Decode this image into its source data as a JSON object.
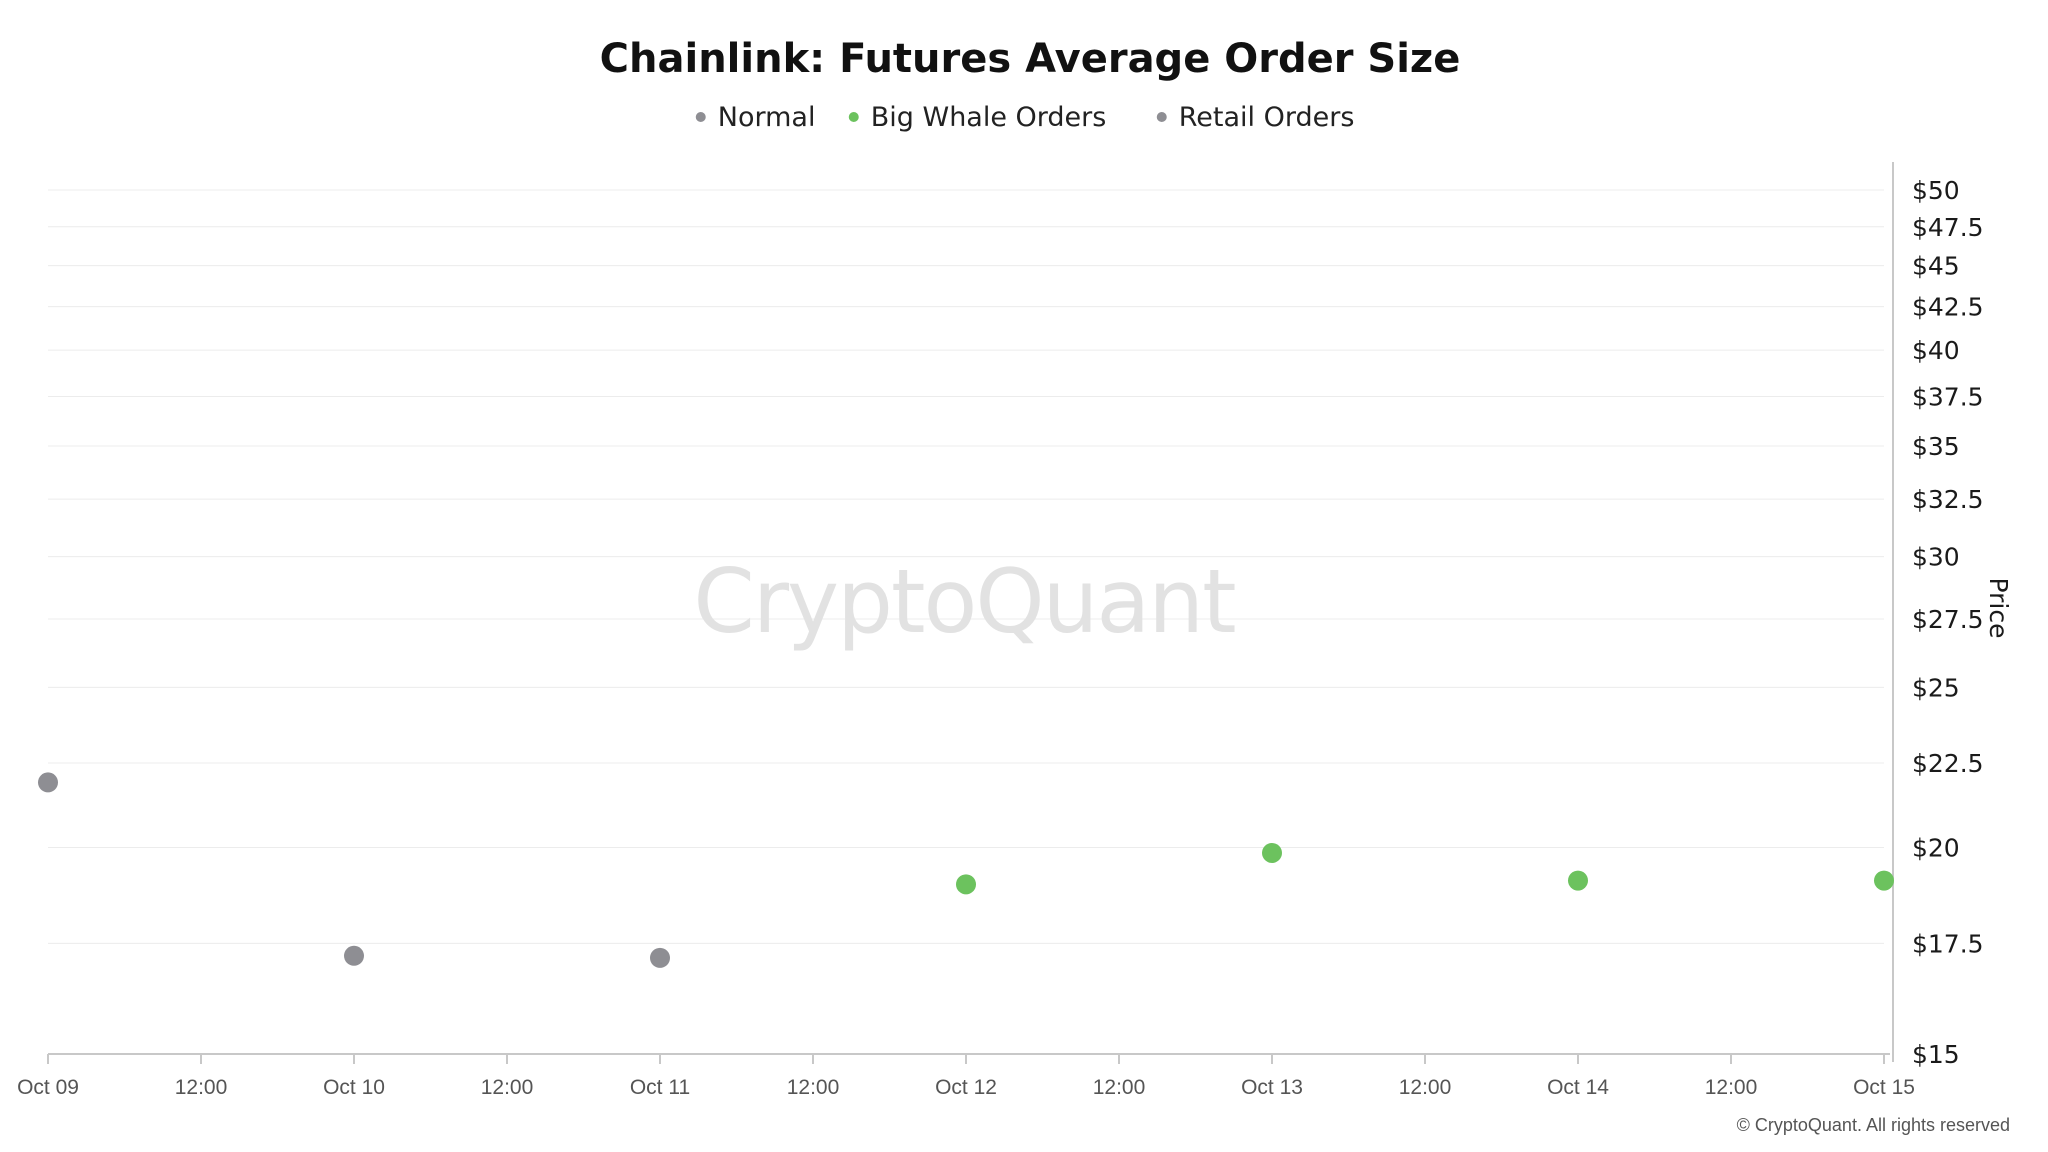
{
  "chart_data": {
    "type": "scatter",
    "title": "Chainlink: Futures Average Order Size",
    "xlabel": "",
    "ylabel": "Price",
    "y_axis_position": "right",
    "x_ticks": [
      "Oct 09",
      "12:00",
      "Oct 10",
      "12:00",
      "Oct 11",
      "12:00",
      "Oct 12",
      "12:00",
      "Oct 13",
      "12:00",
      "Oct 14",
      "12:00",
      "Oct 15"
    ],
    "x_range": [
      "Oct 09",
      "Oct 15"
    ],
    "y_ticks": [
      "$15",
      "$17.5",
      "$20",
      "$22.5",
      "$25",
      "$27.5",
      "$30",
      "$32.5",
      "$35",
      "$37.5",
      "$40",
      "$42.5",
      "$45",
      "$47.5",
      "$50"
    ],
    "ylim": [
      15,
      50
    ],
    "y_scale": "log",
    "legend_position": "top-center",
    "grid": true,
    "legend": [
      {
        "name": "Normal",
        "color": "#8e8e93"
      },
      {
        "name": "Big Whale Orders",
        "color": "#6cc25e"
      },
      {
        "name": "Retail Orders",
        "color": "#8e8e93"
      }
    ],
    "points": [
      {
        "x": "Oct 09",
        "y": 21.9,
        "category": "Retail Orders",
        "color": "#8e8e93"
      },
      {
        "x": "Oct 10",
        "y": 17.2,
        "category": "Retail Orders",
        "color": "#8e8e93"
      },
      {
        "x": "Oct 11",
        "y": 17.15,
        "category": "Retail Orders",
        "color": "#8e8e93"
      },
      {
        "x": "Oct 12",
        "y": 19.0,
        "category": "Big Whale Orders",
        "color": "#6cc25e"
      },
      {
        "x": "Oct 13",
        "y": 19.85,
        "category": "Big Whale Orders",
        "color": "#6cc25e"
      },
      {
        "x": "Oct 14",
        "y": 19.1,
        "category": "Big Whale Orders",
        "color": "#6cc25e"
      },
      {
        "x": "Oct 15",
        "y": 19.1,
        "category": "Big Whale Orders",
        "color": "#6cc25e"
      }
    ]
  },
  "watermark": "CryptoQuant",
  "copyright": "© CryptoQuant. All rights reserved"
}
